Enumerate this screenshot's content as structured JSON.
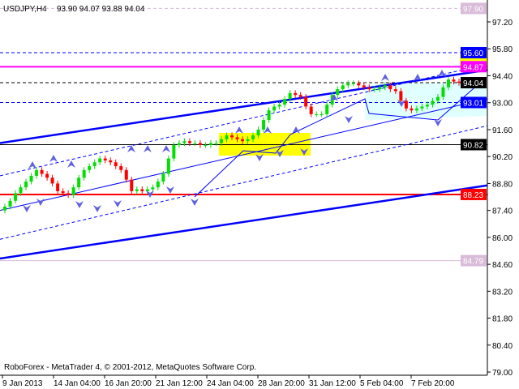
{
  "header": {
    "symbol_timeframe": "USDJPY,H4",
    "ohlc": "93.90 94.07 93.88 94.04"
  },
  "footer": {
    "copyright": "RoboForex - MetaTrader 4, © 2001-2012, MetaQuotes Software Corp."
  },
  "colors": {
    "bull": "#00e000",
    "bear": "#ff0000",
    "trend": "#0000ff",
    "zone": "#ffff00",
    "triangle": "#e0ffff"
  },
  "chart_data": {
    "type": "candlestick",
    "symbol": "USDJPY",
    "timeframe": "H4",
    "ylim": [
      79.0,
      97.9
    ],
    "y_ticks": [
      "97.20",
      "95.80",
      "94.40",
      "93.00",
      "91.60",
      "90.20",
      "88.80",
      "87.40",
      "86.00",
      "84.60",
      "83.20",
      "81.80",
      "80.40",
      "79.00"
    ],
    "x_ticks": [
      "9 Jan 2013",
      "14 Jan 04:00",
      "16 Jan 20:00",
      "21 Jan 12:00",
      "24 Jan 04:00",
      "28 Jan 20:00",
      "31 Jan 12:00",
      "5 Feb 04:00",
      "7 Feb 20:00"
    ],
    "closes": [
      87.6,
      87.9,
      88.3,
      88.6,
      88.9,
      89.2,
      89.5,
      89.3,
      89.1,
      88.8,
      88.4,
      88.3,
      88.2,
      88.6,
      89.1,
      89.5,
      89.7,
      89.9,
      90.1,
      90.0,
      89.9,
      89.7,
      89.5,
      89.0,
      88.4,
      88.5,
      88.4,
      88.5,
      88.6,
      88.9,
      89.3,
      90.1,
      90.8,
      90.9,
      91.0,
      90.9,
      90.9,
      90.8,
      90.8,
      90.9,
      90.9,
      91.1,
      91.3,
      91.2,
      91.1,
      91.0,
      91.1,
      91.3,
      91.6,
      92.1,
      92.6,
      92.8,
      92.9,
      93.2,
      93.5,
      93.4,
      93.3,
      92.8,
      92.4,
      92.4,
      92.4,
      92.9,
      93.4,
      93.7,
      93.9,
      94.0,
      94.0,
      93.9,
      93.8,
      93.7,
      93.7,
      93.8,
      93.9,
      93.7,
      93.6,
      93.1,
      92.7,
      92.6,
      92.7,
      92.8,
      92.9,
      93.1,
      93.3,
      93.8,
      94.2,
      94.1,
      94.04
    ],
    "levels": [
      {
        "label": "97.90",
        "value": 97.9,
        "color": "#d8bcd8",
        "style": "dashed"
      },
      {
        "label": "95.60",
        "value": 95.6,
        "color": "#0000ff",
        "style": "dashed"
      },
      {
        "label": "94.87",
        "value": 94.87,
        "color": "#ff00ff",
        "style": "solid"
      },
      {
        "label": "94.04",
        "value": 94.04,
        "color": "#000000",
        "style": "dashed"
      },
      {
        "label": "93.01",
        "value": 93.01,
        "color": "#0000ff",
        "style": "dashed"
      },
      {
        "label": "90.82",
        "value": 90.82,
        "color": "#000000",
        "style": "solid"
      },
      {
        "label": "88.23",
        "value": 88.23,
        "color": "#ff0000",
        "style": "solid"
      },
      {
        "label": "84.79",
        "value": 84.79,
        "color": "#d8bcd8",
        "style": "solid"
      }
    ],
    "trendlines": [
      {
        "name": "upper-channel",
        "from": 90.9,
        "to": 94.7,
        "width": "thick"
      },
      {
        "name": "lower-channel",
        "from": 84.9,
        "to": 88.7,
        "width": "thick"
      },
      {
        "name": "dashed-upper",
        "from": 89.2,
        "to": 95.0,
        "width": "dashed"
      },
      {
        "name": "dashed-lower",
        "from": 85.9,
        "to": 91.8,
        "width": "dashed"
      },
      {
        "name": "mid-support",
        "from": 87.4,
        "to": 93.2,
        "width": "thin"
      }
    ]
  }
}
